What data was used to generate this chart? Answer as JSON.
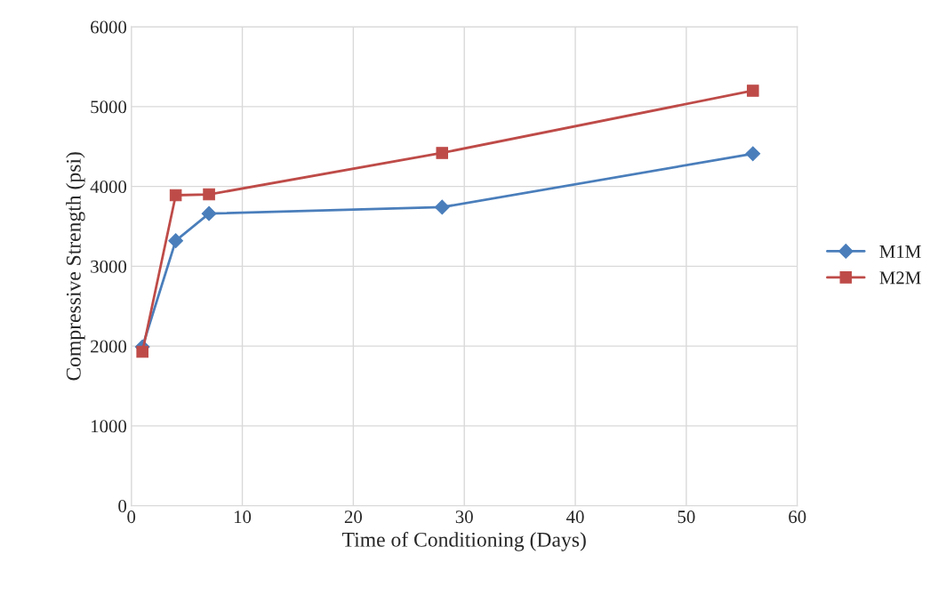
{
  "chart_data": {
    "type": "line",
    "xlabel": "Time of Conditioning (Days)",
    "ylabel": "Compressive Strength (psi)",
    "x": [
      1,
      4,
      7,
      28,
      56
    ],
    "series": [
      {
        "name": "M1M",
        "color": "#4a7ebb",
        "marker": "diamond",
        "values": [
          1990,
          3320,
          3660,
          3740,
          4410
        ]
      },
      {
        "name": "M2M",
        "color": "#be4b48",
        "marker": "square",
        "values": [
          1930,
          3890,
          3900,
          4420,
          5200
        ]
      }
    ],
    "xlim": [
      0,
      60
    ],
    "xticks": [
      0,
      10,
      20,
      30,
      40,
      50,
      60
    ],
    "ylim": [
      0,
      6000
    ],
    "yticks": [
      0,
      1000,
      2000,
      3000,
      4000,
      5000,
      6000
    ],
    "grid": true,
    "legend": "right",
    "line_style": "solid"
  }
}
